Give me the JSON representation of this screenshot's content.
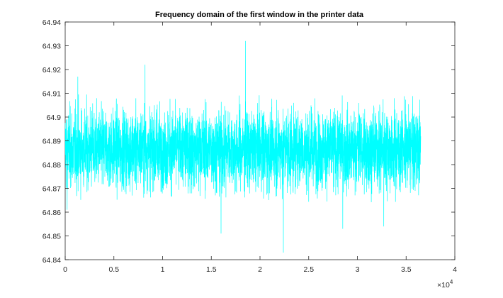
{
  "chart_data": {
    "type": "line",
    "title": "Frequency domain of the first window in the printer data",
    "xlabel": "",
    "ylabel": "",
    "xlim": [
      0,
      40000
    ],
    "ylim": [
      64.84,
      64.94
    ],
    "x_tick_labels": [
      "0",
      "0.5",
      "1",
      "1.5",
      "2",
      "2.5",
      "3",
      "3.5",
      "4"
    ],
    "x_tick_values": [
      0,
      5000,
      10000,
      15000,
      20000,
      25000,
      30000,
      35000,
      40000
    ],
    "x_exponent_label": "×10",
    "x_exponent_power": "4",
    "y_tick_labels": [
      "64.84",
      "64.85",
      "64.86",
      "64.87",
      "64.88",
      "64.89",
      "64.9",
      "64.91",
      "64.92",
      "64.93",
      "64.94"
    ],
    "y_tick_values": [
      64.84,
      64.85,
      64.86,
      64.87,
      64.88,
      64.89,
      64.9,
      64.91,
      64.92,
      64.93,
      64.94
    ],
    "grid": false,
    "legend": "none",
    "series": [
      {
        "color": "#00ffff",
        "x_start": 1,
        "x_end": 36500,
        "n_points": 4000,
        "center": 64.8865,
        "typical_low": 64.87,
        "typical_high": 64.905,
        "extremes": [
          {
            "x": 200,
            "y": 64.861
          },
          {
            "x": 1300,
            "y": 64.917
          },
          {
            "x": 8200,
            "y": 64.922
          },
          {
            "x": 16000,
            "y": 64.851
          },
          {
            "x": 18500,
            "y": 64.932
          },
          {
            "x": 22400,
            "y": 64.843
          },
          {
            "x": 28500,
            "y": 64.853
          },
          {
            "x": 32700,
            "y": 64.854
          }
        ]
      }
    ]
  }
}
